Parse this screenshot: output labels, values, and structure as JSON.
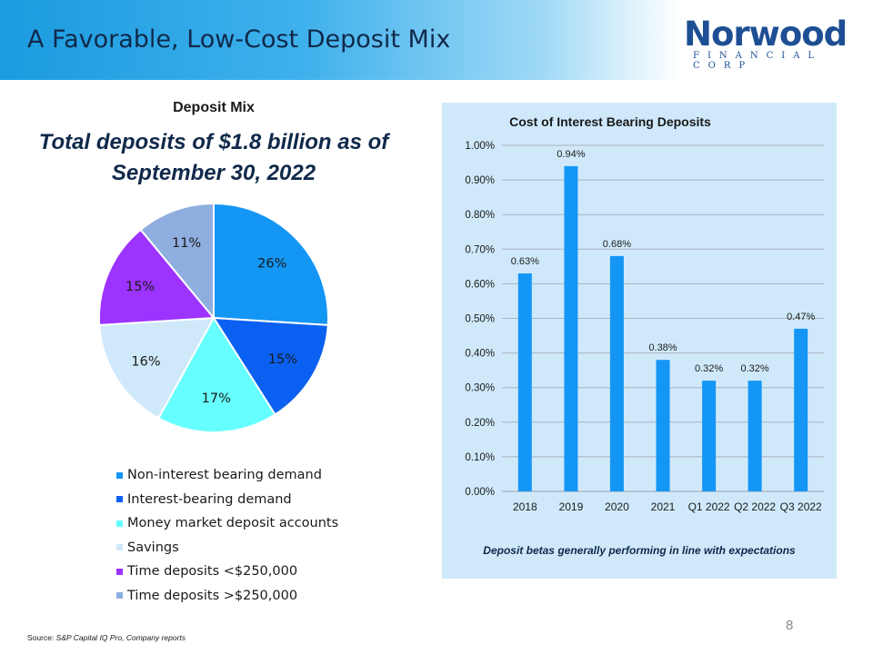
{
  "slide": {
    "title": "A Favorable, Low-Cost Deposit Mix",
    "page_number": "8",
    "source_label": "Source:",
    "source_text": "S&P Capital IQ Pro, Company reports"
  },
  "logo": {
    "word": "Norwood",
    "sub": "FINANCIAL CORP"
  },
  "deposit_mix": {
    "title": "Deposit Mix",
    "subtitle_line1": "Total deposits of $1.8 billion as of",
    "subtitle_line2": "September 30, 2022"
  },
  "cost_chart": {
    "footnote": "Deposit betas generally performing in line with expectations"
  },
  "chart_data": [
    {
      "type": "pie",
      "title": "Deposit Mix",
      "categories": [
        "Non-interest bearing demand",
        "Interest-bearing demand",
        "Money market deposit accounts",
        "Savings",
        "Time deposits <$250,000",
        "Time deposits >$250,000"
      ],
      "values": [
        26,
        15,
        17,
        16,
        15,
        11
      ],
      "labels": [
        "26%",
        "15%",
        "17%",
        "16%",
        "15%",
        "11%"
      ],
      "colors": [
        "#1496f5",
        "#0a60f0",
        "#66ffff",
        "#cfe9fb",
        "#9c33ff",
        "#8faee0"
      ],
      "legend": "bottom"
    },
    {
      "type": "bar",
      "title": "Cost of Interest Bearing Deposits",
      "categories": [
        "2018",
        "2019",
        "2020",
        "2021",
        "Q1 2022",
        "Q2 2022",
        "Q3 2022"
      ],
      "values": [
        0.63,
        0.94,
        0.68,
        0.38,
        0.32,
        0.32,
        0.47
      ],
      "data_labels": [
        "0.63%",
        "0.94%",
        "0.68%",
        "0.38%",
        "0.32%",
        "0.32%",
        "0.47%"
      ],
      "yticks": [
        "0.00%",
        "0.10%",
        "0.20%",
        "0.30%",
        "0.40%",
        "0.50%",
        "0.60%",
        "0.70%",
        "0.80%",
        "0.90%",
        "1.00%"
      ],
      "ylim": [
        0,
        1.0
      ],
      "bar_color": "#1496f5",
      "grid": true
    }
  ]
}
